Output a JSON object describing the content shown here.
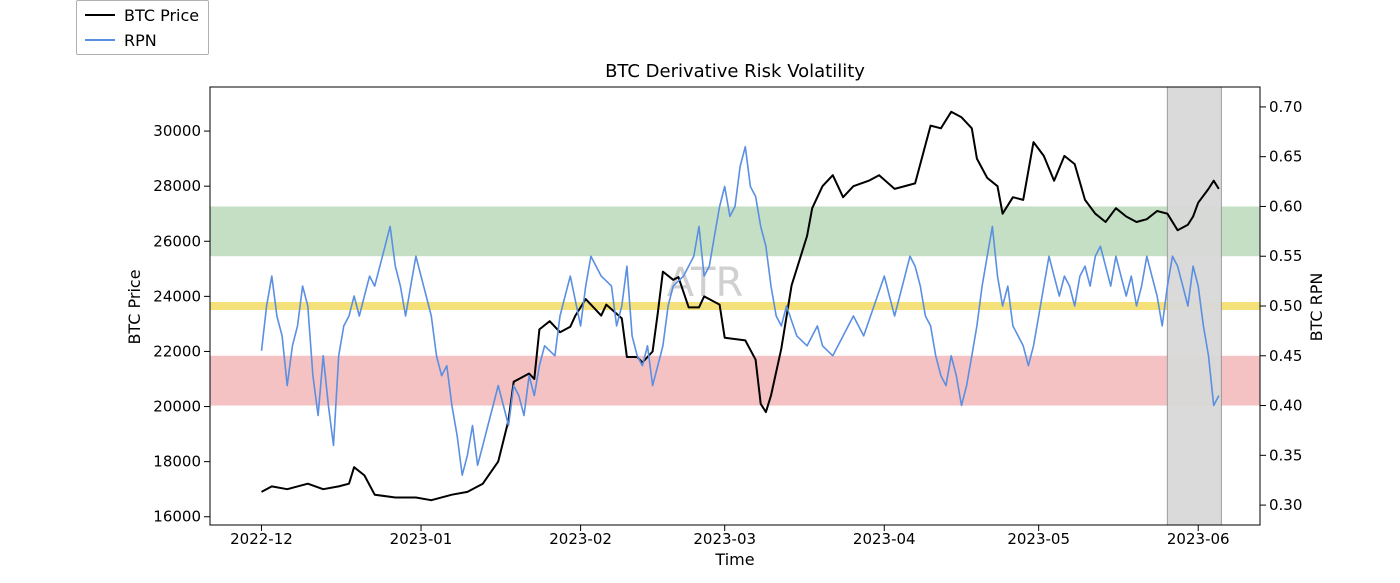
{
  "chart_data": {
    "type": "line",
    "title": "BTC Derivative Risk Volatility",
    "xlabel": "Time",
    "ylabel_left": "BTC Price",
    "ylabel_right": "BTC RPN",
    "watermark": "ATR",
    "x_ticks": [
      "2022-12",
      "2023-01",
      "2023-02",
      "2023-03",
      "2023-04",
      "2023-05",
      "2023-06"
    ],
    "x_tick_days": [
      0,
      31,
      62,
      90,
      121,
      151,
      182
    ],
    "x_range_days": [
      -10,
      194
    ],
    "left_axis": {
      "range": [
        15700,
        31600
      ],
      "ticks": [
        16000,
        18000,
        20000,
        22000,
        24000,
        26000,
        28000,
        30000
      ]
    },
    "right_axis": {
      "range": [
        0.28,
        0.72
      ],
      "ticks": [
        "0.30",
        "0.35",
        "0.40",
        "0.45",
        "0.50",
        "0.55",
        "0.60",
        "0.65",
        "0.70"
      ]
    },
    "bands": [
      {
        "name": "green-zone",
        "axis": "right",
        "from": 0.55,
        "to": 0.6,
        "color": "#c5dfc5"
      },
      {
        "name": "yellow-line",
        "axis": "right",
        "from": 0.496,
        "to": 0.504,
        "color": "#f5e17a"
      },
      {
        "name": "red-zone",
        "axis": "right",
        "from": 0.4,
        "to": 0.45,
        "color": "#f4c2c2"
      }
    ],
    "highlight": {
      "from_day": 176,
      "to_day": 186.5,
      "color": "#d9d9d9"
    },
    "series": [
      {
        "name": "BTC Price",
        "axis": "left",
        "color": "#000000",
        "points": [
          [
            0,
            16900
          ],
          [
            2,
            17100
          ],
          [
            5,
            17000
          ],
          [
            9,
            17200
          ],
          [
            12,
            17000
          ],
          [
            15,
            17100
          ],
          [
            17,
            17200
          ],
          [
            18,
            17800
          ],
          [
            20,
            17500
          ],
          [
            22,
            16800
          ],
          [
            26,
            16700
          ],
          [
            30,
            16700
          ],
          [
            33,
            16600
          ],
          [
            37,
            16800
          ],
          [
            40,
            16900
          ],
          [
            43,
            17200
          ],
          [
            46,
            18000
          ],
          [
            48,
            19500
          ],
          [
            49,
            20900
          ],
          [
            52,
            21200
          ],
          [
            53,
            21000
          ],
          [
            54,
            22800
          ],
          [
            56,
            23100
          ],
          [
            58,
            22700
          ],
          [
            60,
            22900
          ],
          [
            61,
            23300
          ],
          [
            63,
            23900
          ],
          [
            66,
            23300
          ],
          [
            67,
            23700
          ],
          [
            70,
            23200
          ],
          [
            71,
            21800
          ],
          [
            73,
            21800
          ],
          [
            74,
            21600
          ],
          [
            76,
            22000
          ],
          [
            77,
            23400
          ],
          [
            78,
            24900
          ],
          [
            80,
            24600
          ],
          [
            81,
            24700
          ],
          [
            83,
            23600
          ],
          [
            85,
            23600
          ],
          [
            86,
            24000
          ],
          [
            89,
            23700
          ],
          [
            90,
            22500
          ],
          [
            94,
            22400
          ],
          [
            96,
            21700
          ],
          [
            97,
            20100
          ],
          [
            98,
            19800
          ],
          [
            99,
            20400
          ],
          [
            101,
            22100
          ],
          [
            103,
            24400
          ],
          [
            104,
            25000
          ],
          [
            106,
            26200
          ],
          [
            107,
            27200
          ],
          [
            109,
            28000
          ],
          [
            111,
            28400
          ],
          [
            113,
            27600
          ],
          [
            115,
            28000
          ],
          [
            118,
            28200
          ],
          [
            120,
            28400
          ],
          [
            123,
            27900
          ],
          [
            127,
            28100
          ],
          [
            130,
            30200
          ],
          [
            132,
            30100
          ],
          [
            134,
            30700
          ],
          [
            136,
            30500
          ],
          [
            138,
            30100
          ],
          [
            139,
            29000
          ],
          [
            141,
            28300
          ],
          [
            143,
            28000
          ],
          [
            144,
            27000
          ],
          [
            146,
            27600
          ],
          [
            148,
            27500
          ],
          [
            150,
            29600
          ],
          [
            152,
            29100
          ],
          [
            154,
            28200
          ],
          [
            156,
            29100
          ],
          [
            158,
            28800
          ],
          [
            160,
            27500
          ],
          [
            162,
            27000
          ],
          [
            164,
            26700
          ],
          [
            166,
            27200
          ],
          [
            168,
            26900
          ],
          [
            170,
            26700
          ],
          [
            172,
            26800
          ],
          [
            174,
            27100
          ],
          [
            176,
            27000
          ],
          [
            178,
            26400
          ],
          [
            180,
            26600
          ],
          [
            181,
            26900
          ],
          [
            182,
            27400
          ],
          [
            184,
            27900
          ],
          [
            185,
            28200
          ],
          [
            186,
            27900
          ]
        ]
      },
      {
        "name": "RPN",
        "axis": "right",
        "color": "#5a8fe2",
        "points": [
          [
            0,
            0.455
          ],
          [
            1,
            0.5
          ],
          [
            2,
            0.53
          ],
          [
            3,
            0.49
          ],
          [
            4,
            0.47
          ],
          [
            5,
            0.42
          ],
          [
            6,
            0.46
          ],
          [
            7,
            0.48
          ],
          [
            8,
            0.52
          ],
          [
            9,
            0.5
          ],
          [
            10,
            0.43
          ],
          [
            11,
            0.39
          ],
          [
            12,
            0.45
          ],
          [
            13,
            0.4
          ],
          [
            14,
            0.36
          ],
          [
            15,
            0.45
          ],
          [
            16,
            0.48
          ],
          [
            17,
            0.49
          ],
          [
            18,
            0.51
          ],
          [
            19,
            0.49
          ],
          [
            20,
            0.51
          ],
          [
            21,
            0.53
          ],
          [
            22,
            0.52
          ],
          [
            24,
            0.56
          ],
          [
            25,
            0.58
          ],
          [
            26,
            0.54
          ],
          [
            27,
            0.52
          ],
          [
            28,
            0.49
          ],
          [
            29,
            0.52
          ],
          [
            30,
            0.55
          ],
          [
            31,
            0.53
          ],
          [
            32,
            0.51
          ],
          [
            33,
            0.49
          ],
          [
            34,
            0.45
          ],
          [
            35,
            0.43
          ],
          [
            36,
            0.44
          ],
          [
            37,
            0.4
          ],
          [
            38,
            0.37
          ],
          [
            39,
            0.33
          ],
          [
            40,
            0.35
          ],
          [
            41,
            0.38
          ],
          [
            42,
            0.34
          ],
          [
            43,
            0.36
          ],
          [
            44,
            0.38
          ],
          [
            45,
            0.4
          ],
          [
            46,
            0.42
          ],
          [
            47,
            0.4
          ],
          [
            48,
            0.38
          ],
          [
            49,
            0.42
          ],
          [
            50,
            0.41
          ],
          [
            51,
            0.39
          ],
          [
            52,
            0.43
          ],
          [
            53,
            0.41
          ],
          [
            54,
            0.44
          ],
          [
            55,
            0.46
          ],
          [
            57,
            0.45
          ],
          [
            58,
            0.49
          ],
          [
            59,
            0.51
          ],
          [
            60,
            0.53
          ],
          [
            62,
            0.48
          ],
          [
            63,
            0.52
          ],
          [
            64,
            0.55
          ],
          [
            66,
            0.53
          ],
          [
            68,
            0.52
          ],
          [
            69,
            0.48
          ],
          [
            70,
            0.5
          ],
          [
            71,
            0.54
          ],
          [
            72,
            0.47
          ],
          [
            73,
            0.45
          ],
          [
            74,
            0.44
          ],
          [
            75,
            0.46
          ],
          [
            76,
            0.42
          ],
          [
            77,
            0.44
          ],
          [
            78,
            0.46
          ],
          [
            79,
            0.5
          ],
          [
            80,
            0.52
          ],
          [
            82,
            0.53
          ],
          [
            84,
            0.55
          ],
          [
            85,
            0.58
          ],
          [
            86,
            0.53
          ],
          [
            87,
            0.54
          ],
          [
            88,
            0.57
          ],
          [
            89,
            0.6
          ],
          [
            90,
            0.62
          ],
          [
            91,
            0.59
          ],
          [
            92,
            0.6
          ],
          [
            93,
            0.64
          ],
          [
            94,
            0.66
          ],
          [
            95,
            0.62
          ],
          [
            96,
            0.61
          ],
          [
            97,
            0.58
          ],
          [
            98,
            0.56
          ],
          [
            99,
            0.52
          ],
          [
            100,
            0.49
          ],
          [
            101,
            0.48
          ],
          [
            102,
            0.5
          ],
          [
            104,
            0.47
          ],
          [
            106,
            0.46
          ],
          [
            108,
            0.48
          ],
          [
            109,
            0.46
          ],
          [
            111,
            0.45
          ],
          [
            113,
            0.47
          ],
          [
            115,
            0.49
          ],
          [
            117,
            0.47
          ],
          [
            119,
            0.5
          ],
          [
            121,
            0.53
          ],
          [
            122,
            0.51
          ],
          [
            123,
            0.49
          ],
          [
            125,
            0.53
          ],
          [
            126,
            0.55
          ],
          [
            127,
            0.54
          ],
          [
            128,
            0.52
          ],
          [
            129,
            0.49
          ],
          [
            130,
            0.48
          ],
          [
            131,
            0.45
          ],
          [
            132,
            0.43
          ],
          [
            133,
            0.42
          ],
          [
            134,
            0.45
          ],
          [
            135,
            0.43
          ],
          [
            136,
            0.4
          ],
          [
            137,
            0.42
          ],
          [
            138,
            0.45
          ],
          [
            139,
            0.48
          ],
          [
            140,
            0.52
          ],
          [
            141,
            0.55
          ],
          [
            142,
            0.58
          ],
          [
            143,
            0.53
          ],
          [
            144,
            0.5
          ],
          [
            145,
            0.52
          ],
          [
            146,
            0.48
          ],
          [
            148,
            0.46
          ],
          [
            149,
            0.44
          ],
          [
            150,
            0.46
          ],
          [
            151,
            0.49
          ],
          [
            152,
            0.52
          ],
          [
            153,
            0.55
          ],
          [
            154,
            0.53
          ],
          [
            155,
            0.51
          ],
          [
            156,
            0.53
          ],
          [
            157,
            0.52
          ],
          [
            158,
            0.5
          ],
          [
            159,
            0.53
          ],
          [
            160,
            0.54
          ],
          [
            161,
            0.52
          ],
          [
            162,
            0.55
          ],
          [
            163,
            0.56
          ],
          [
            164,
            0.54
          ],
          [
            165,
            0.52
          ],
          [
            166,
            0.55
          ],
          [
            167,
            0.53
          ],
          [
            168,
            0.51
          ],
          [
            169,
            0.53
          ],
          [
            170,
            0.5
          ],
          [
            171,
            0.52
          ],
          [
            172,
            0.55
          ],
          [
            173,
            0.53
          ],
          [
            174,
            0.51
          ],
          [
            175,
            0.48
          ],
          [
            176,
            0.52
          ],
          [
            177,
            0.55
          ],
          [
            178,
            0.54
          ],
          [
            179,
            0.52
          ],
          [
            180,
            0.5
          ],
          [
            181,
            0.54
          ],
          [
            182,
            0.52
          ],
          [
            183,
            0.48
          ],
          [
            184,
            0.45
          ],
          [
            185,
            0.4
          ],
          [
            186,
            0.41
          ]
        ]
      }
    ]
  }
}
